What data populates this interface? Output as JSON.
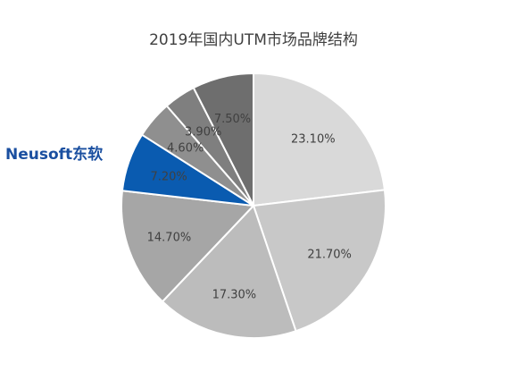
{
  "chart_data": {
    "type": "pie",
    "title": "2019年国内UTM市场品牌结构",
    "slices": [
      {
        "label": "23.10%",
        "value": 23.1,
        "color": "#d9d9d9"
      },
      {
        "label": "21.70%",
        "value": 21.7,
        "color": "#c8c8c8"
      },
      {
        "label": "17.30%",
        "value": 17.3,
        "color": "#bcbcbc"
      },
      {
        "label": "14.70%",
        "value": 14.7,
        "color": "#a6a6a6"
      },
      {
        "label": "7.20%",
        "value": 7.2,
        "color": "#0a5bb0",
        "brand": "Neusoft东软"
      },
      {
        "label": "4.60%",
        "value": 4.6,
        "color": "#8f8f8f"
      },
      {
        "label": "3.90%",
        "value": 3.9,
        "color": "#7f7f7f"
      },
      {
        "label": "7.50%",
        "value": 7.5,
        "color": "#6e6e6e"
      }
    ],
    "legend": "none"
  },
  "brand_logo": "Neusoft东软"
}
